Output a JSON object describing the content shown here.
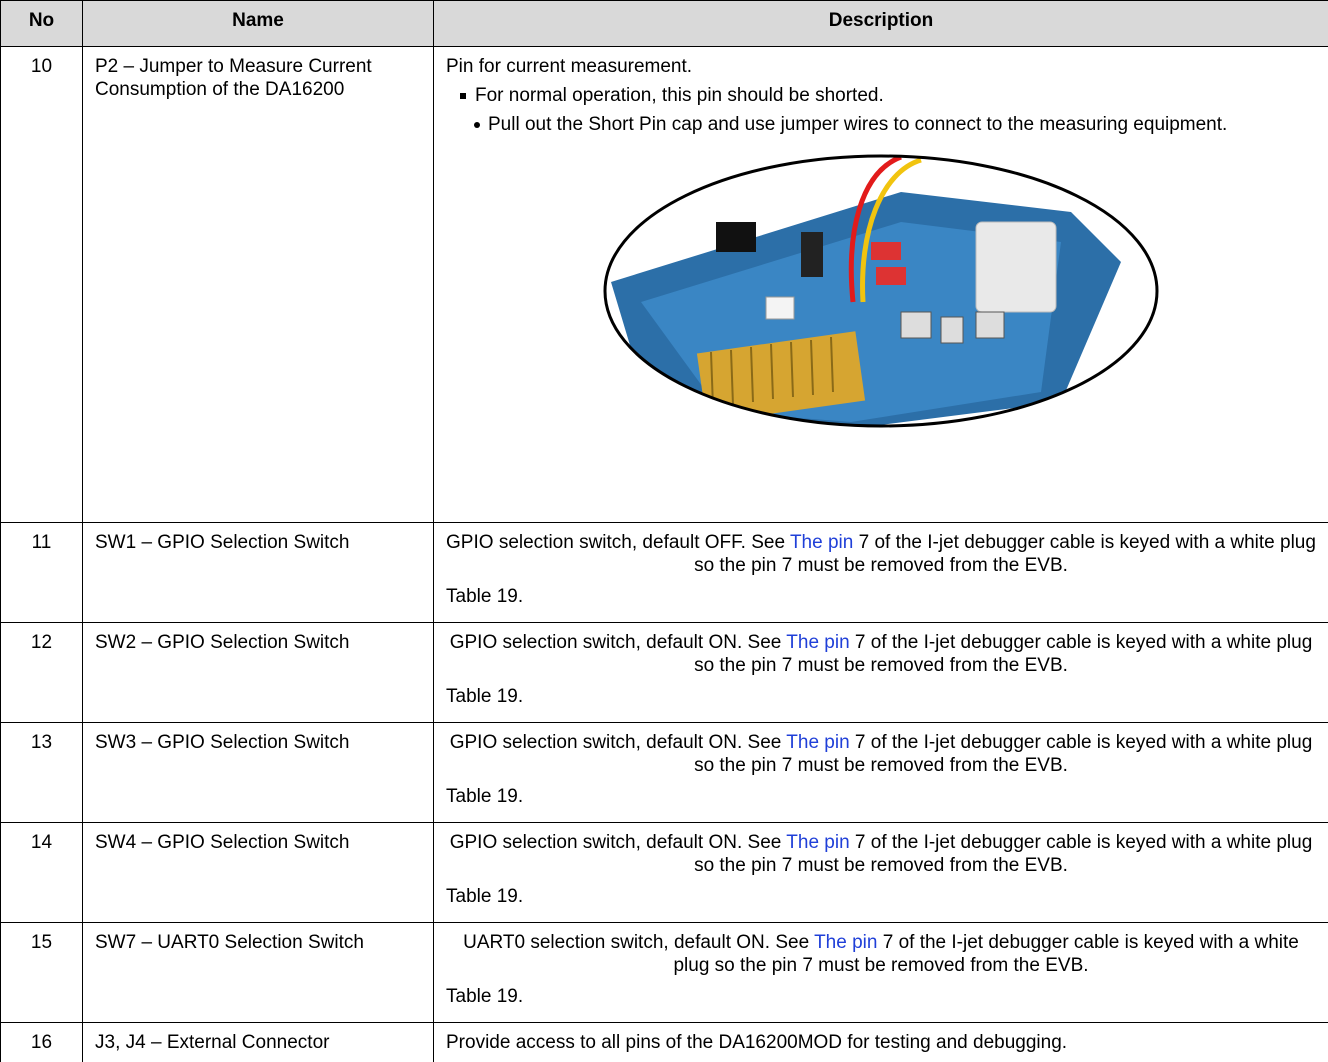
{
  "header": {
    "no": "No",
    "name": "Name",
    "description": "Description"
  },
  "rows": [
    {
      "no": "10",
      "name": "P2 – Jumper to Measure Current Consumption of the DA16200",
      "description": {
        "intro": "Pin for current measurement.",
        "bullet": "For normal operation, this pin should be shorted.",
        "sub_bullet": "Pull out the Short Pin cap and use jumper wires to connect to the measuring equipment."
      }
    },
    {
      "no": "11",
      "name": "SW1 – GPIO Selection Switch",
      "description": {
        "before": "GPIO selection switch, default OFF. See ",
        "link": "The pin",
        "after": " 7 of the I-jet debugger cable is keyed with a white plug so the pin 7 must be removed from the EVB.",
        "reference": "Table 19."
      }
    },
    {
      "no": "12",
      "name": "SW2 – GPIO Selection Switch",
      "description": {
        "before": "GPIO selection switch, default ON. See ",
        "link": "The pin",
        "after": " 7 of the I-jet debugger cable is keyed with a white plug so the pin 7 must be removed from the EVB.",
        "reference": "Table 19."
      }
    },
    {
      "no": "13",
      "name": "SW3 – GPIO Selection Switch",
      "description": {
        "before": "GPIO selection switch, default ON. See ",
        "link": "The pin",
        "after": " 7 of the I-jet debugger cable is keyed with a white plug so the pin 7 must be removed from the EVB.",
        "reference": "Table 19."
      }
    },
    {
      "no": "14",
      "name": "SW4 – GPIO Selection Switch",
      "description": {
        "before": "GPIO selection switch, default ON. See ",
        "link": "The pin",
        "after": " 7 of the I-jet debugger cable is keyed with a white plug so the pin 7 must be removed from the EVB.",
        "reference": "Table 19."
      }
    },
    {
      "no": "15",
      "name": "SW7 – UART0 Selection Switch",
      "description": {
        "before": "UART0 selection switch, default ON. See ",
        "link": "The pin",
        "after": " 7 of the I-jet debugger cable is keyed with a white plug so the pin 7 must be removed from the EVB.",
        "reference": "Table 19."
      }
    },
    {
      "no": "16",
      "name": "J3, J4 – External Connector",
      "description": {
        "text": "Provide access to all pins of the DA16200MOD for testing and debugging."
      }
    }
  ]
}
